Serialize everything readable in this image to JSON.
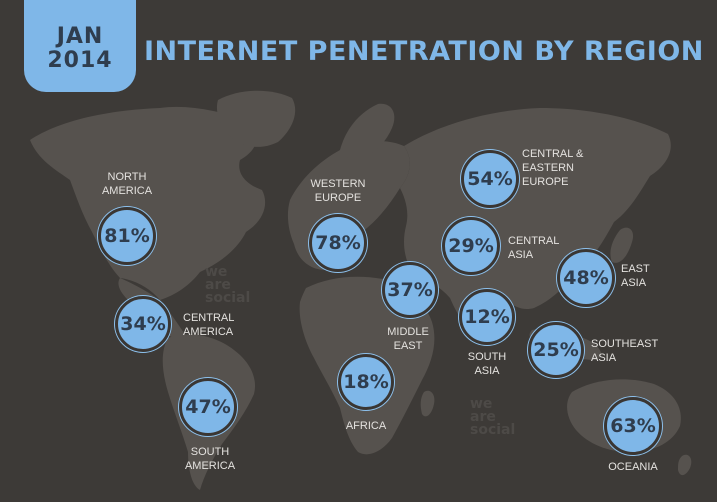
{
  "header": {
    "month": "JAN",
    "year": "2014",
    "title": "INTERNET PENETRATION BY REGION"
  },
  "colors": {
    "background": "#3d3a37",
    "land": "#56524e",
    "accent": "#7fb7e8",
    "bubble_text": "#2f3d4e",
    "label_text": "#e4e2df"
  },
  "regions": {
    "north_america": {
      "label_1": "NORTH",
      "label_2": "AMERICA",
      "value": "81%"
    },
    "central_america": {
      "label_1": "CENTRAL",
      "label_2": "AMERICA",
      "value": "34%"
    },
    "south_america": {
      "label_1": "SOUTH",
      "label_2": "AMERICA",
      "value": "47%"
    },
    "western_europe": {
      "label_1": "WESTERN",
      "label_2": "EUROPE",
      "value": "78%"
    },
    "central_eastern_europe": {
      "label_1": "CENTRAL &",
      "label_2": "EASTERN",
      "label_3": "EUROPE",
      "value": "54%"
    },
    "central_asia": {
      "label_1": "CENTRAL",
      "label_2": "ASIA",
      "value": "29%"
    },
    "middle_east": {
      "label_1": "MIDDLE",
      "label_2": "EAST",
      "value": "37%"
    },
    "south_asia": {
      "label_1": "SOUTH",
      "label_2": "ASIA",
      "value": "12%"
    },
    "east_asia": {
      "label_1": "EAST",
      "label_2": "ASIA",
      "value": "48%"
    },
    "southeast_asia": {
      "label_1": "SOUTHEAST",
      "label_2": "ASIA",
      "value": "25%"
    },
    "africa": {
      "label_1": "AFRICA",
      "value": "18%"
    },
    "oceania": {
      "label_1": "OCEANIA",
      "value": "63%"
    }
  },
  "watermark": {
    "line_1": "we",
    "line_2": "are",
    "line_3": "social"
  }
}
